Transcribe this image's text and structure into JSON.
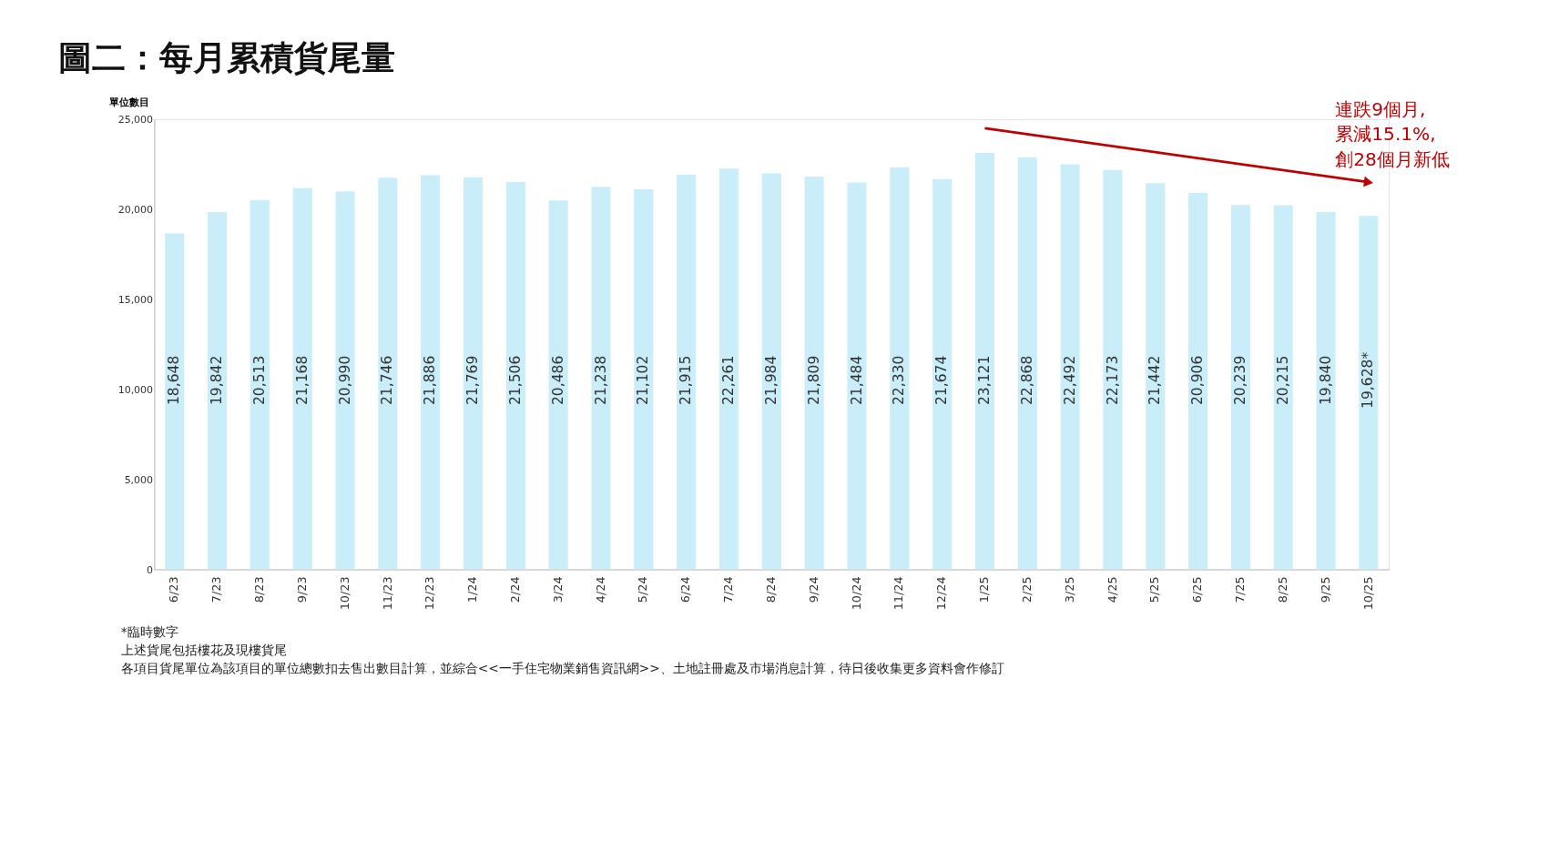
{
  "chart_data": {
    "type": "bar",
    "title": "圖二：每月累積貨尾量",
    "ylabel": "單位數目",
    "categories": [
      "6/23",
      "7/23",
      "8/23",
      "9/23",
      "10/23",
      "11/23",
      "12/23",
      "1/24",
      "2/24",
      "3/24",
      "4/24",
      "5/24",
      "6/24",
      "7/24",
      "8/24",
      "9/24",
      "10/24",
      "11/24",
      "12/24",
      "1/25",
      "2/25",
      "3/25",
      "4/25",
      "5/25",
      "6/25",
      "7/25",
      "8/25",
      "9/25",
      "10/25"
    ],
    "values": [
      18648,
      19842,
      20513,
      21168,
      20990,
      21746,
      21886,
      21769,
      21506,
      20486,
      21238,
      21102,
      21915,
      22261,
      21984,
      21809,
      21484,
      22330,
      21674,
      23121,
      22868,
      22492,
      22173,
      21442,
      20906,
      20239,
      20215,
      19840,
      19628
    ],
    "value_labels": [
      "18,648",
      "19,842",
      "20,513",
      "21,168",
      "20,990",
      "21,746",
      "21,886",
      "21,769",
      "21,506",
      "20,486",
      "21,238",
      "21,102",
      "21,915",
      "22,261",
      "21,984",
      "21,809",
      "21,484",
      "22,330",
      "21,674",
      "23,121",
      "22,868",
      "22,492",
      "22,173",
      "21,442",
      "20,906",
      "20,239",
      "20,215",
      "19,840",
      "19,628*"
    ],
    "color": "#c9eef9",
    "ylim": [
      0,
      25000
    ],
    "yticks": [
      0,
      {
        "value": 5000,
        "label": "5,000"
      },
      {
        "value": 10000,
        "label": "10,000"
      },
      {
        "value": 15000,
        "label": "15,000"
      },
      {
        "value": 20000,
        "label": "20,000"
      },
      {
        "value": 25000,
        "label": "25,000"
      }
    ],
    "grid": false,
    "annotations": [
      {
        "text": "連跌9個月,\n累減15.1%,\n創28個月新低",
        "x": "10/25",
        "y": 21500
      },
      "*臨時數字",
      "上述貨尾包括樓花及現樓貨尾",
      "各項目貨尾單位為該項目的單位總數扣去售出數目計算，並綜合<<一手住宅物業銷售資訊網>>、土地註冊處及市場消息計算，待日後收集更多資料會作修訂"
    ]
  }
}
